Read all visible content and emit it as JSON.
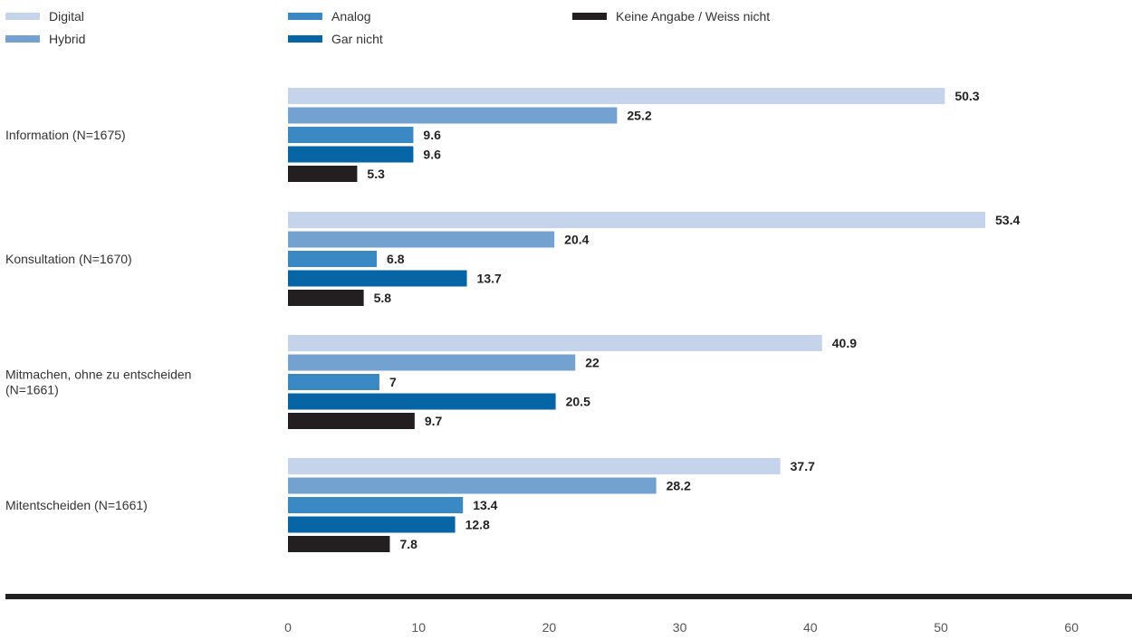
{
  "chart_data": {
    "type": "bar",
    "orientation": "horizontal",
    "categories": [
      [
        "Information (N=1675)"
      ],
      [
        "Konsultation (N=1670)"
      ],
      [
        "Mitmachen, ohne zu entscheiden",
        "(N=1661)"
      ],
      [
        "Mitentscheiden (N=1661)"
      ]
    ],
    "series": [
      {
        "name": "Digital",
        "color": "#c5d3eb",
        "values": [
          50.3,
          53.4,
          40.9,
          37.7
        ]
      },
      {
        "name": "Hybrid",
        "color": "#74a2d0",
        "values": [
          25.2,
          20.4,
          22,
          28.2
        ]
      },
      {
        "name": "Analog",
        "color": "#3a88c4",
        "values": [
          9.6,
          6.8,
          7,
          13.4
        ]
      },
      {
        "name": "Gar nicht",
        "color": "#0765a5",
        "values": [
          9.6,
          13.7,
          20.5,
          12.8
        ]
      },
      {
        "name": "Keine Angabe / Weiss nicht",
        "color": "#231f20",
        "values": [
          5.3,
          5.8,
          9.7,
          7.8
        ]
      }
    ],
    "xlim": [
      0,
      60
    ],
    "ticks": [
      0,
      10,
      20,
      30,
      40,
      50,
      60
    ],
    "grid": false,
    "legend": "top",
    "axis_line_color": "#222222"
  }
}
